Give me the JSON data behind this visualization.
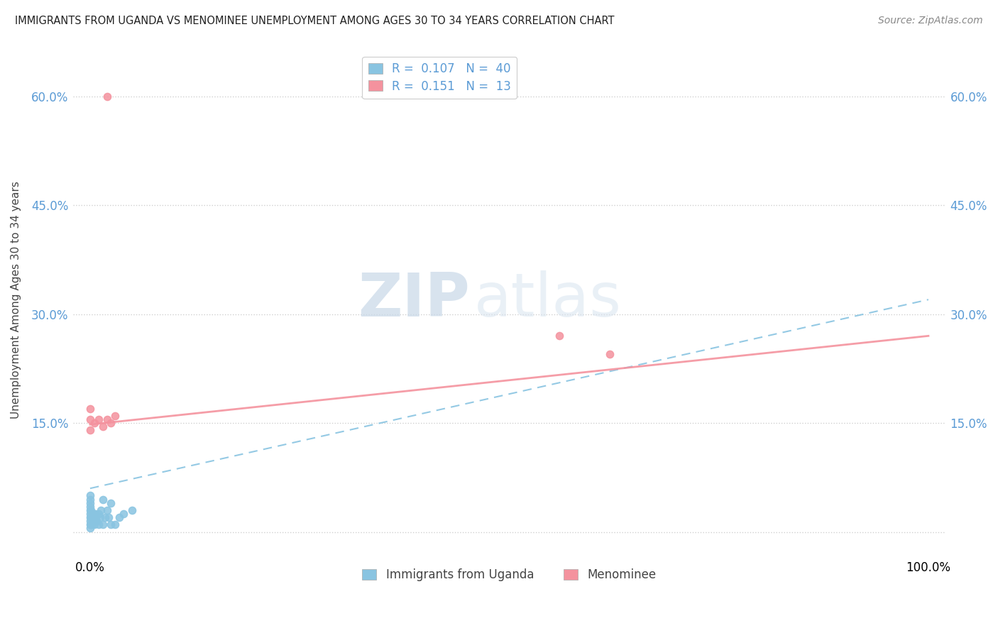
{
  "title": "IMMIGRANTS FROM UGANDA VS MENOMINEE UNEMPLOYMENT AMONG AGES 30 TO 34 YEARS CORRELATION CHART",
  "source": "Source: ZipAtlas.com",
  "ylabel": "Unemployment Among Ages 30 to 34 years",
  "color_uganda": "#89c4e1",
  "color_menominee": "#f4929e",
  "watermark_zip": "ZIP",
  "watermark_atlas": "atlas",
  "uganda_x": [
    0.0,
    0.0,
    0.0,
    0.0,
    0.0,
    0.0,
    0.0,
    0.0,
    0.0,
    0.0,
    0.001,
    0.001,
    0.001,
    0.002,
    0.002,
    0.003,
    0.003,
    0.004,
    0.004,
    0.005,
    0.005,
    0.006,
    0.006,
    0.007,
    0.008,
    0.01,
    0.01,
    0.012,
    0.013,
    0.015,
    0.015,
    0.018,
    0.02,
    0.022,
    0.025,
    0.025,
    0.03,
    0.035,
    0.04,
    0.05
  ],
  "uganda_y": [
    0.005,
    0.01,
    0.015,
    0.02,
    0.025,
    0.03,
    0.035,
    0.04,
    0.045,
    0.05,
    0.01,
    0.02,
    0.03,
    0.015,
    0.025,
    0.01,
    0.02,
    0.015,
    0.025,
    0.01,
    0.02,
    0.015,
    0.025,
    0.02,
    0.015,
    0.01,
    0.025,
    0.02,
    0.03,
    0.01,
    0.045,
    0.02,
    0.03,
    0.02,
    0.01,
    0.04,
    0.01,
    0.02,
    0.025,
    0.03
  ],
  "menominee_x": [
    0.0,
    0.0,
    0.0,
    0.005,
    0.01,
    0.015,
    0.02,
    0.02,
    0.025,
    0.03,
    0.56,
    0.62
  ],
  "menominee_y": [
    0.14,
    0.155,
    0.17,
    0.15,
    0.155,
    0.145,
    0.6,
    0.155,
    0.15,
    0.16,
    0.27,
    0.245
  ],
  "uganda_trend_x0": 0.0,
  "uganda_trend_y0": 0.06,
  "uganda_trend_x1": 1.0,
  "uganda_trend_y1": 0.32,
  "menominee_trend_x0": 0.0,
  "menominee_trend_y0": 0.148,
  "menominee_trend_x1": 1.0,
  "menominee_trend_y1": 0.27,
  "xlim": [
    -0.02,
    1.02
  ],
  "ylim": [
    -0.03,
    0.67
  ],
  "ytick_values": [
    0.0,
    0.15,
    0.3,
    0.45,
    0.6
  ],
  "ytick_labels": [
    "",
    "15.0%",
    "30.0%",
    "45.0%",
    "60.0%"
  ],
  "xtick_values": [
    0.0,
    1.0
  ],
  "xtick_labels": [
    "0.0%",
    "100.0%"
  ]
}
